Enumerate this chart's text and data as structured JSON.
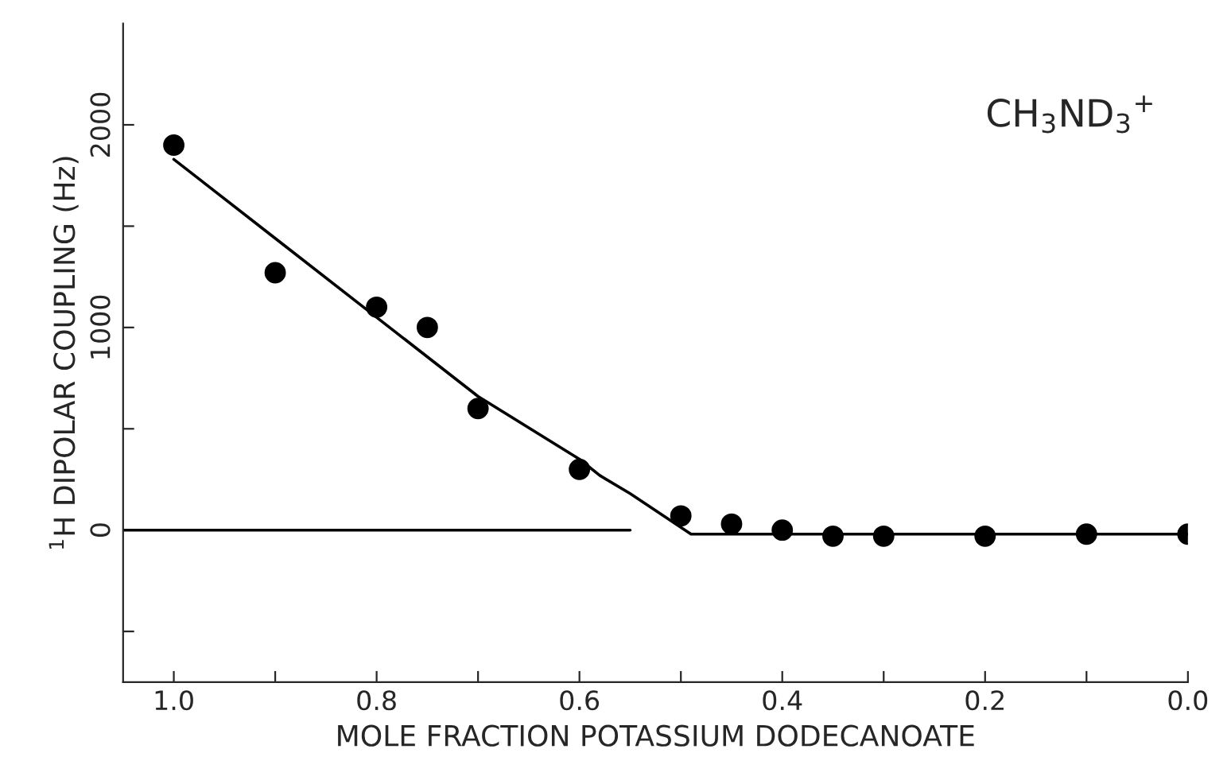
{
  "chart_data": {
    "type": "scatter",
    "xlabel": "MOLE FRACTION POTASSIUM DODECANOATE",
    "ylabel": "$^{1}$H DIPOLAR COUPLING (Hz)",
    "annotations": [
      "CH$_{3}$ND$_{3}$$^{+}$"
    ],
    "series": [
      {
        "color": "#000000",
        "marker": "circle",
        "x": [
          1.0,
          0.9,
          0.8,
          0.75,
          0.7,
          0.6,
          0.5,
          0.45,
          0.4,
          0.35,
          0.3,
          0.2,
          0.1,
          0.0
        ],
        "values": [
          1900,
          1270,
          1100,
          1000,
          600,
          300,
          70,
          30,
          0,
          -30,
          -30,
          -30,
          -20,
          -20
        ]
      },
      {
        "type": "line",
        "color": "#000000",
        "line_style": "solid",
        "x": [
          1.0,
          0.9,
          0.8,
          0.7,
          0.6,
          0.58,
          0.55,
          0.49,
          0.0
        ],
        "values": [
          1830,
          1440,
          1050,
          660,
          350,
          270,
          180,
          -20,
          -20
        ]
      },
      {
        "type": "line",
        "color": "#000000",
        "line_style": "solid",
        "x": [
          1.05,
          0.55
        ],
        "values": [
          0,
          0
        ]
      }
    ],
    "xlim": [
      1.05,
      0.0
    ],
    "ylim": [
      -750,
      2500
    ],
    "xticks": [
      {
        "value": 1.0,
        "label": "1.0"
      },
      {
        "value": 0.9,
        "label": null
      },
      0.8,
      {
        "value": 0.7,
        "label": null
      },
      0.6,
      {
        "value": 0.5,
        "label": null
      },
      0.4,
      {
        "value": 0.3,
        "label": null
      },
      0.2,
      {
        "value": 0.1,
        "label": null
      },
      {
        "value": 0.0,
        "label": "0.0"
      }
    ],
    "yticks": [
      {
        "value": -500,
        "label": null
      },
      0,
      {
        "value": 500,
        "label": null
      },
      1000,
      {
        "value": 1500,
        "label": null
      },
      2000
    ],
    "grid": false,
    "legend": false
  }
}
